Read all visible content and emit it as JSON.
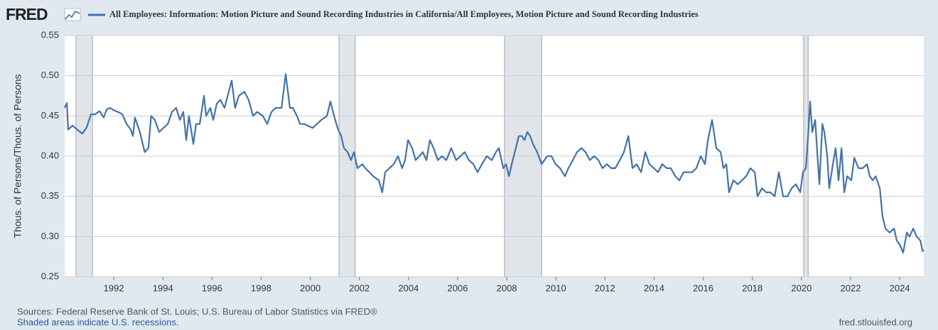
{
  "logo": "FRED",
  "sources": "Sources: Federal Reserve Bank of St. Louis; U.S. Bureau of Labor Statistics via FRED®",
  "note": "Shaded areas indicate U.S. recessions.",
  "site": "fred.stlouisfed.org",
  "chart_data": {
    "type": "line",
    "y_label": "Thous. of Persons/Thous. of Persons",
    "xlim": [
      1990,
      2024.98
    ],
    "ylim": [
      0.25,
      0.55
    ],
    "yticks": [
      0.25,
      {
        "value": 0.3,
        "label": "0.30"
      },
      0.35,
      {
        "value": 0.4,
        "label": "0.40"
      },
      0.45,
      {
        "value": 0.5,
        "label": "0.50"
      },
      0.55
    ],
    "xticks": [
      1992,
      1994,
      1996,
      1998,
      2000,
      2002,
      2004,
      2006,
      2008,
      2010,
      2012,
      2014,
      2016,
      2018,
      2020,
      2022,
      2024
    ],
    "grid": true,
    "recessions": [
      [
        1990.46,
        1991.13
      ],
      [
        2001.17,
        2001.83
      ],
      [
        2007.91,
        2009.42
      ],
      [
        2020.09,
        2020.27
      ]
    ],
    "x": [
      1990.0,
      1990.09,
      1990.14,
      1990.32,
      1990.55,
      1990.72,
      1990.9,
      1991.07,
      1991.24,
      1991.42,
      1991.59,
      1991.71,
      1991.85,
      1992.0,
      1992.17,
      1992.35,
      1992.52,
      1992.69,
      1992.78,
      1992.86,
      1993.06,
      1993.26,
      1993.41,
      1993.52,
      1993.67,
      1993.85,
      1994.02,
      1994.2,
      1994.37,
      1994.54,
      1994.69,
      1994.83,
      1994.95,
      1995.06,
      1995.24,
      1995.35,
      1995.5,
      1995.67,
      1995.76,
      1995.93,
      1996.05,
      1996.19,
      1996.34,
      1996.51,
      1996.68,
      1996.8,
      1996.94,
      1997.09,
      1997.32,
      1997.49,
      1997.67,
      1997.84,
      1998.07,
      1998.25,
      1998.42,
      1998.59,
      1998.83,
      1999.0,
      1999.17,
      1999.29,
      1999.46,
      1999.58,
      1999.75,
      2000.1,
      2000.27,
      2000.45,
      2000.68,
      2000.82,
      2000.97,
      2001.11,
      2001.26,
      2001.37,
      2001.52,
      2001.66,
      2001.78,
      2001.92,
      2002.12,
      2002.24,
      2002.41,
      2002.56,
      2002.79,
      2002.93,
      2003.05,
      2003.22,
      2003.4,
      2003.57,
      2003.74,
      2003.86,
      2003.98,
      2004.15,
      2004.29,
      2004.44,
      2004.58,
      2004.73,
      2004.87,
      2005.02,
      2005.19,
      2005.36,
      2005.54,
      2005.74,
      2005.94,
      2006.12,
      2006.29,
      2006.46,
      2006.64,
      2006.81,
      2006.99,
      2007.19,
      2007.39,
      2007.56,
      2007.68,
      2007.86,
      2007.97,
      2008.09,
      2008.2,
      2008.37,
      2008.49,
      2008.61,
      2008.72,
      2008.84,
      2008.95,
      2009.07,
      2009.24,
      2009.42,
      2009.65,
      2009.82,
      2009.99,
      2010.17,
      2010.37,
      2010.51,
      2010.69,
      2010.86,
      2011.04,
      2011.21,
      2011.38,
      2011.56,
      2011.73,
      2011.9,
      2012.08,
      2012.25,
      2012.42,
      2012.6,
      2012.77,
      2012.95,
      2013.12,
      2013.29,
      2013.47,
      2013.64,
      2013.81,
      2013.99,
      2014.16,
      2014.33,
      2014.51,
      2014.68,
      2014.86,
      2015.03,
      2015.2,
      2015.38,
      2015.55,
      2015.72,
      2015.9,
      2016.07,
      2016.19,
      2016.36,
      2016.53,
      2016.71,
      2016.82,
      2016.94,
      2017.05,
      2017.23,
      2017.4,
      2017.58,
      2017.75,
      2017.92,
      2018.1,
      2018.21,
      2018.39,
      2018.56,
      2018.73,
      2018.91,
      2019.08,
      2019.25,
      2019.43,
      2019.6,
      2019.77,
      2019.95,
      2020.06,
      2020.18,
      2020.27,
      2020.35,
      2020.44,
      2020.56,
      2020.64,
      2020.73,
      2020.85,
      2020.93,
      2021.05,
      2021.13,
      2021.28,
      2021.39,
      2021.51,
      2021.63,
      2021.74,
      2021.86,
      2022.03,
      2022.15,
      2022.32,
      2022.49,
      2022.67,
      2022.78,
      2022.9,
      2023.02,
      2023.19,
      2023.3,
      2023.42,
      2023.59,
      2023.77,
      2023.88,
      2024.0,
      2024.14,
      2024.29,
      2024.4,
      2024.55,
      2024.69,
      2024.84,
      2024.93,
      2024.98
    ],
    "series": [
      {
        "name": "All Employees: Information: Motion Picture and Sound Recording Industries in California/All Employees, Motion Picture and Sound Recording Industries",
        "color": "#4572a7",
        "values": [
          0.46,
          0.466,
          0.433,
          0.438,
          0.432,
          0.428,
          0.436,
          0.452,
          0.452,
          0.456,
          0.448,
          0.458,
          0.46,
          0.457,
          0.455,
          0.452,
          0.44,
          0.433,
          0.425,
          0.448,
          0.43,
          0.405,
          0.41,
          0.45,
          0.445,
          0.43,
          0.435,
          0.44,
          0.455,
          0.46,
          0.445,
          0.455,
          0.42,
          0.45,
          0.415,
          0.44,
          0.44,
          0.475,
          0.45,
          0.46,
          0.445,
          0.465,
          0.47,
          0.46,
          0.48,
          0.494,
          0.46,
          0.475,
          0.48,
          0.47,
          0.45,
          0.455,
          0.45,
          0.44,
          0.455,
          0.46,
          0.46,
          0.502,
          0.46,
          0.46,
          0.45,
          0.44,
          0.44,
          0.435,
          0.44,
          0.445,
          0.45,
          0.468,
          0.45,
          0.435,
          0.425,
          0.41,
          0.405,
          0.395,
          0.405,
          0.385,
          0.39,
          0.385,
          0.38,
          0.375,
          0.37,
          0.355,
          0.38,
          0.385,
          0.39,
          0.4,
          0.385,
          0.395,
          0.42,
          0.41,
          0.395,
          0.4,
          0.405,
          0.395,
          0.42,
          0.41,
          0.395,
          0.4,
          0.395,
          0.41,
          0.395,
          0.4,
          0.405,
          0.395,
          0.39,
          0.38,
          0.39,
          0.4,
          0.395,
          0.405,
          0.41,
          0.385,
          0.39,
          0.375,
          0.39,
          0.41,
          0.425,
          0.425,
          0.42,
          0.43,
          0.425,
          0.415,
          0.405,
          0.39,
          0.4,
          0.4,
          0.39,
          0.385,
          0.375,
          0.385,
          0.395,
          0.405,
          0.41,
          0.405,
          0.395,
          0.4,
          0.395,
          0.385,
          0.39,
          0.385,
          0.385,
          0.395,
          0.405,
          0.425,
          0.385,
          0.39,
          0.38,
          0.405,
          0.39,
          0.385,
          0.38,
          0.39,
          0.385,
          0.385,
          0.375,
          0.37,
          0.38,
          0.38,
          0.38,
          0.385,
          0.4,
          0.39,
          0.42,
          0.445,
          0.41,
          0.405,
          0.385,
          0.39,
          0.355,
          0.37,
          0.365,
          0.37,
          0.375,
          0.385,
          0.38,
          0.35,
          0.36,
          0.355,
          0.355,
          0.35,
          0.38,
          0.35,
          0.35,
          0.36,
          0.365,
          0.355,
          0.38,
          0.385,
          0.425,
          0.468,
          0.43,
          0.445,
          0.405,
          0.365,
          0.44,
          0.43,
          0.4,
          0.36,
          0.39,
          0.41,
          0.37,
          0.41,
          0.355,
          0.375,
          0.37,
          0.398,
          0.385,
          0.385,
          0.39,
          0.375,
          0.37,
          0.375,
          0.36,
          0.325,
          0.31,
          0.305,
          0.31,
          0.295,
          0.29,
          0.28,
          0.305,
          0.3,
          0.31,
          0.3,
          0.295,
          0.282,
          0.283
        ]
      }
    ]
  }
}
